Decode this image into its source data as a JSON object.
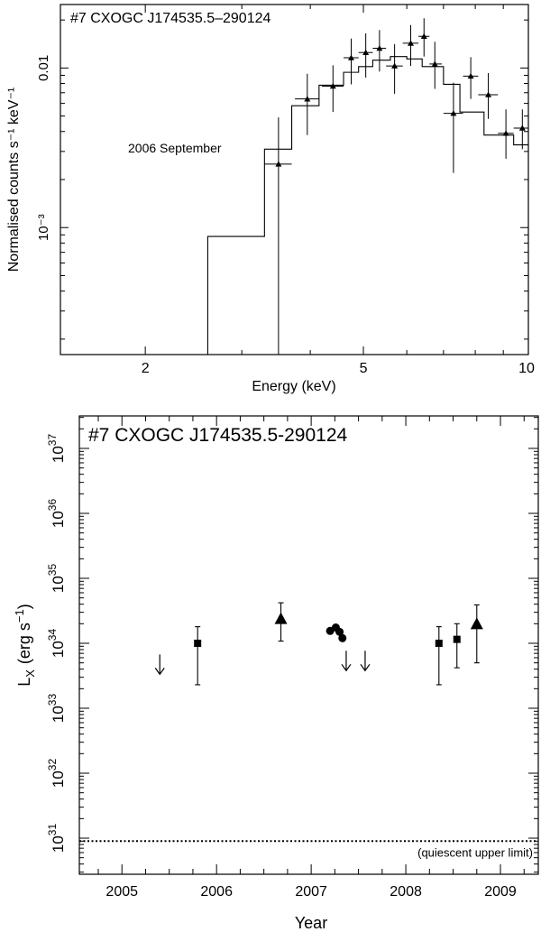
{
  "chart_data": [
    {
      "type": "line",
      "panel": "spectrum",
      "title": "#7 CXOGC J174535.5–290124",
      "annotation": "2006 September",
      "xlabel": "Energy (keV)",
      "ylabel": "Normalised counts s⁻¹ keV⁻¹",
      "xscale": "log",
      "yscale": "log",
      "xlim": [
        1.4,
        10
      ],
      "ylim": [
        0.00016,
        0.025
      ],
      "x_ticks": [
        {
          "v": 2,
          "label": "2"
        },
        {
          "v": 5,
          "label": "5"
        },
        {
          "v": 10,
          "label": "10"
        }
      ],
      "y_ticks": [
        {
          "v": 0.01,
          "label": "0.01"
        },
        {
          "v": 0.001,
          "label": "10⁻³"
        }
      ],
      "series": [
        {
          "kind": "model_histogram",
          "bins": [
            {
              "x0": 2.6,
              "x1": 3.3,
              "y": 0.00088
            },
            {
              "x0": 3.3,
              "x1": 3.7,
              "y": 0.0031
            },
            {
              "x0": 3.7,
              "x1": 4.15,
              "y": 0.0058
            },
            {
              "x0": 4.15,
              "x1": 4.6,
              "y": 0.0078
            },
            {
              "x0": 4.6,
              "x1": 4.9,
              "y": 0.0094
            },
            {
              "x0": 4.9,
              "x1": 5.2,
              "y": 0.0102
            },
            {
              "x0": 5.2,
              "x1": 5.6,
              "y": 0.0112
            },
            {
              "x0": 5.6,
              "x1": 6.0,
              "y": 0.0118
            },
            {
              "x0": 6.0,
              "x1": 6.4,
              "y": 0.0114
            },
            {
              "x0": 6.4,
              "x1": 7.0,
              "y": 0.0102
            },
            {
              "x0": 7.0,
              "x1": 7.5,
              "y": 0.0079
            },
            {
              "x0": 7.5,
              "x1": 8.3,
              "y": 0.0053
            },
            {
              "x0": 8.3,
              "x1": 9.4,
              "y": 0.0038
            },
            {
              "x0": 9.4,
              "x1": 10.0,
              "y": 0.0033
            }
          ]
        },
        {
          "kind": "data_points",
          "points": [
            {
              "x": 3.5,
              "xlo": 3.3,
              "xhi": 3.7,
              "y": 0.0025,
              "ylo": 0.00016,
              "yhi": 0.0049
            },
            {
              "x": 3.95,
              "xlo": 3.75,
              "xhi": 4.15,
              "y": 0.0064,
              "ylo": 0.0038,
              "yhi": 0.0092
            },
            {
              "x": 4.4,
              "xlo": 4.2,
              "xhi": 4.6,
              "y": 0.0077,
              "ylo": 0.0053,
              "yhi": 0.0104
            },
            {
              "x": 4.75,
              "xlo": 4.6,
              "xhi": 4.9,
              "y": 0.0116,
              "ylo": 0.0079,
              "yhi": 0.0153
            },
            {
              "x": 5.05,
              "xlo": 4.9,
              "xhi": 5.2,
              "y": 0.0125,
              "ylo": 0.0087,
              "yhi": 0.0165
            },
            {
              "x": 5.35,
              "xlo": 5.2,
              "xhi": 5.5,
              "y": 0.0133,
              "ylo": 0.0095,
              "yhi": 0.0173
            },
            {
              "x": 5.7,
              "xlo": 5.5,
              "xhi": 5.9,
              "y": 0.0103,
              "ylo": 0.0069,
              "yhi": 0.0141
            },
            {
              "x": 6.1,
              "xlo": 5.9,
              "xhi": 6.3,
              "y": 0.0143,
              "ylo": 0.0103,
              "yhi": 0.0186
            },
            {
              "x": 6.45,
              "xlo": 6.3,
              "xhi": 6.6,
              "y": 0.0158,
              "ylo": 0.0118,
              "yhi": 0.0205
            },
            {
              "x": 6.75,
              "xlo": 6.6,
              "xhi": 6.95,
              "y": 0.0106,
              "ylo": 0.0074,
              "yhi": 0.0146
            },
            {
              "x": 7.3,
              "xlo": 7.0,
              "xhi": 7.6,
              "y": 0.0052,
              "ylo": 0.0022,
              "yhi": 0.0081
            },
            {
              "x": 7.85,
              "xlo": 7.6,
              "xhi": 8.1,
              "y": 0.0089,
              "ylo": 0.0064,
              "yhi": 0.0117
            },
            {
              "x": 8.45,
              "xlo": 8.1,
              "xhi": 8.8,
              "y": 0.0068,
              "ylo": 0.0048,
              "yhi": 0.0093
            },
            {
              "x": 9.1,
              "xlo": 8.8,
              "xhi": 9.4,
              "y": 0.0039,
              "ylo": 0.0027,
              "yhi": 0.0055
            },
            {
              "x": 9.75,
              "xlo": 9.4,
              "xhi": 10.0,
              "y": 0.0042,
              "ylo": 0.0031,
              "yhi": 0.0055
            }
          ]
        }
      ]
    },
    {
      "type": "scatter",
      "panel": "lightcurve",
      "title": "#7 CXOGC J174535.5-290124",
      "xlabel": "Year",
      "ylabel": "L",
      "ylabel_sub": "X",
      "ylabel_units": "(erg s",
      "ylabel_units_sup": "−1",
      "ylabel_units_close": ")",
      "yscale": "log",
      "xlim": [
        2004.55,
        2009.4
      ],
      "ylim": [
        1e+31,
        1e+37
      ],
      "x_ticks": [
        {
          "v": 2005,
          "label": "2005"
        },
        {
          "v": 2006,
          "label": "2006"
        },
        {
          "v": 2007,
          "label": "2007"
        },
        {
          "v": 2008,
          "label": "2008"
        },
        {
          "v": 2009,
          "label": "2009"
        }
      ],
      "y_ticks": [
        {
          "exp": 31,
          "base": "10",
          "sup": "31"
        },
        {
          "exp": 32,
          "base": "10",
          "sup": "32"
        },
        {
          "exp": 33,
          "base": "10",
          "sup": "33"
        },
        {
          "exp": 34,
          "base": "10",
          "sup": "34"
        },
        {
          "exp": 35,
          "base": "10",
          "sup": "35"
        },
        {
          "exp": 36,
          "base": "10",
          "sup": "36"
        },
        {
          "exp": 37,
          "base": "10",
          "sup": "37"
        }
      ],
      "reference_line": {
        "y": 9e+30,
        "style": "dotted",
        "label": "(quiescent upper limit)"
      },
      "series": [
        {
          "marker": "square",
          "points": [
            {
              "x": 2005.8,
              "y": 1e+34,
              "ylo": 2.3e+33,
              "yhi": 1.8e+34
            },
            {
              "x": 2008.35,
              "y": 1e+34,
              "ylo": 2.3e+33,
              "yhi": 1.8e+34
            },
            {
              "x": 2008.54,
              "y": 1.15e+34,
              "ylo": 4.2e+33,
              "yhi": 2e+34
            }
          ]
        },
        {
          "marker": "triangle",
          "points": [
            {
              "x": 2006.68,
              "y": 2.4e+34,
              "ylo": 1.08e+34,
              "yhi": 4.2e+34
            },
            {
              "x": 2008.75,
              "y": 2e+34,
              "ylo": 5e+33,
              "yhi": 3.9e+34
            }
          ]
        },
        {
          "marker": "circle",
          "points": [
            {
              "x": 2007.2,
              "y": 1.55e+34
            },
            {
              "x": 2007.26,
              "y": 1.75e+34
            },
            {
              "x": 2007.3,
              "y": 1.5e+34
            },
            {
              "x": 2007.33,
              "y": 1.2e+34
            }
          ]
        },
        {
          "marker": "upper_limit_arrow",
          "points": [
            {
              "x": 2005.4,
              "y": 4.3e+33
            },
            {
              "x": 2007.37,
              "y": 4.9e+33
            },
            {
              "x": 2007.57,
              "y": 4.9e+33
            }
          ]
        }
      ]
    }
  ]
}
